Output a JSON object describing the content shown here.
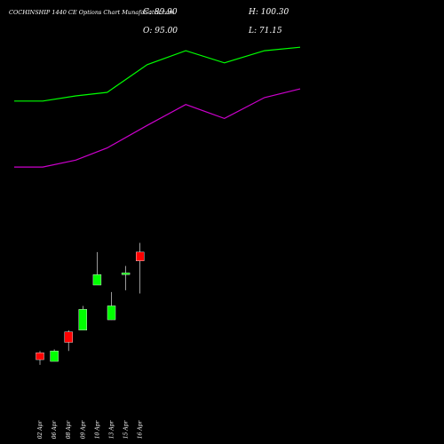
{
  "header": {
    "title": "COCHINSHIP 1440  CE Options  Chart MunafaSutra.com",
    "close": "C: 89.90",
    "open": "O: 95.00",
    "high": "H: 100.30",
    "low": "L: 71.15"
  },
  "colors": {
    "background": "#000000",
    "up": "#00ff00",
    "down": "#ff0000",
    "upper_band": "#00ff00",
    "lower_band": "#cc00cc",
    "wick": "#ffffff",
    "text": "#ffffff"
  },
  "chart_data": {
    "type": "candlestick",
    "title": "COCHINSHIP 1440  CE Options  Chart MunafaSutra.com",
    "xlabel": "",
    "ylabel": "",
    "ylim": [
      10,
      230
    ],
    "grid": false,
    "categories": [
      "02 Apr",
      "06 Apr",
      "08 Apr",
      "09 Apr",
      "10 Apr",
      "13 Apr",
      "15 Apr",
      "16 Apr"
    ],
    "candles": [
      {
        "date": "02 Apr",
        "open": 37,
        "high": 38,
        "low": 30,
        "close": 33,
        "direction": "down"
      },
      {
        "date": "06 Apr",
        "open": 32,
        "high": 39,
        "low": 32,
        "close": 38,
        "direction": "up"
      },
      {
        "date": "08 Apr",
        "open": 49,
        "high": 50,
        "low": 38,
        "close": 43,
        "direction": "down"
      },
      {
        "date": "09 Apr",
        "open": 50,
        "high": 64,
        "low": 50,
        "close": 62,
        "direction": "up"
      },
      {
        "date": "10 Apr",
        "open": 76,
        "high": 95,
        "low": 76,
        "close": 82,
        "direction": "up"
      },
      {
        "date": "13 Apr",
        "open": 56,
        "high": 72,
        "low": 56,
        "close": 64,
        "direction": "up"
      },
      {
        "date": "15 Apr",
        "open": 82,
        "high": 87,
        "low": 73,
        "close": 83,
        "direction": "up"
      },
      {
        "date": "16 Apr",
        "open": 95,
        "high": 100.3,
        "low": 71.15,
        "close": 89.9,
        "direction": "down"
      }
    ],
    "series": [
      {
        "type": "line",
        "color": "#00ff00",
        "points": [
          {
            "x": -1.8,
            "y": 182
          },
          {
            "x": 0.2,
            "y": 182
          },
          {
            "x": 2.5,
            "y": 185
          },
          {
            "x": 4.7,
            "y": 187
          },
          {
            "x": 7.5,
            "y": 203
          },
          {
            "x": 10.2,
            "y": 211
          },
          {
            "x": 12.9,
            "y": 204
          },
          {
            "x": 15.7,
            "y": 211
          },
          {
            "x": 18.2,
            "y": 213
          }
        ]
      },
      {
        "type": "line",
        "color": "#cc00cc",
        "points": [
          {
            "x": -1.8,
            "y": 144
          },
          {
            "x": 0.2,
            "y": 144
          },
          {
            "x": 2.5,
            "y": 148
          },
          {
            "x": 4.7,
            "y": 155
          },
          {
            "x": 7.5,
            "y": 168
          },
          {
            "x": 10.2,
            "y": 180
          },
          {
            "x": 12.9,
            "y": 172
          },
          {
            "x": 15.7,
            "y": 184
          },
          {
            "x": 18.2,
            "y": 189
          }
        ]
      }
    ]
  }
}
